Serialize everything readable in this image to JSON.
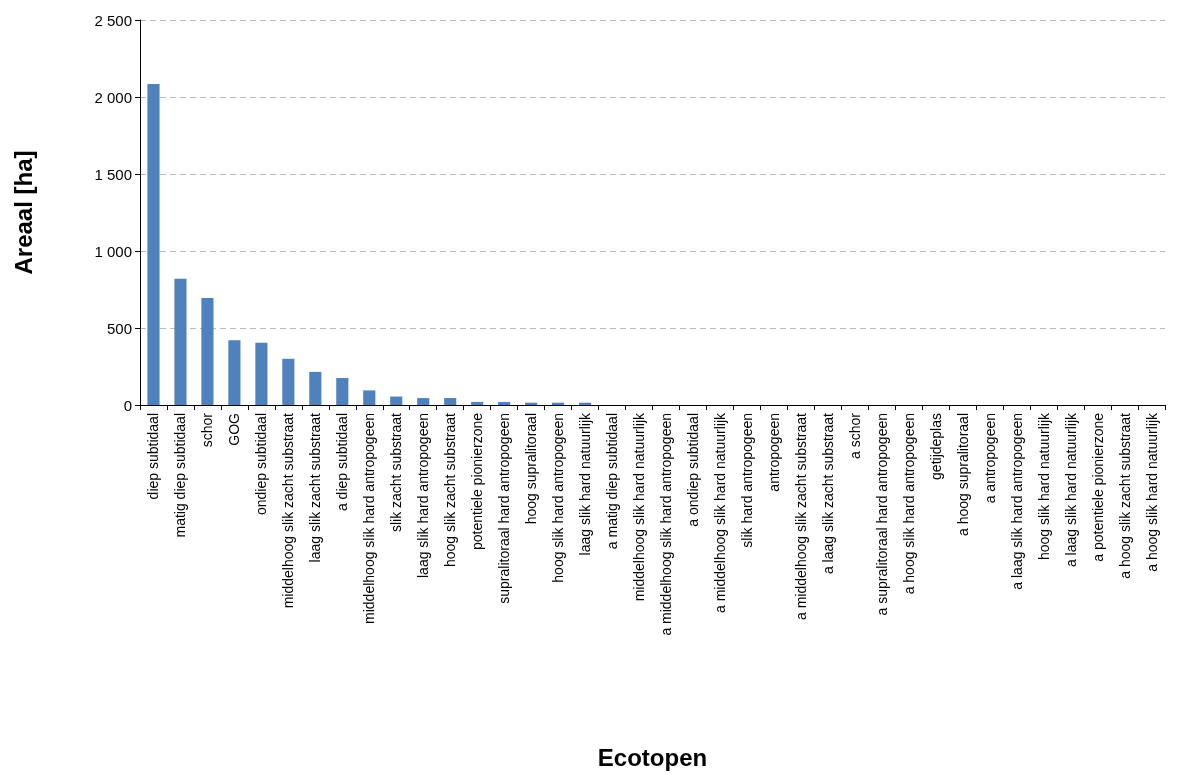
{
  "chart_data": {
    "type": "bar",
    "xlabel": "Ecotopen",
    "ylabel": "Areaal [ha]",
    "categories": [
      "diep subtidaal",
      "matig diep subtidaal",
      "schor",
      "GOG",
      "ondiep subtidaal",
      "middelhoog slik zacht substraat",
      "laag slik zacht substraat",
      "a diep subtidaal",
      "middelhoog slik hard antropogeen",
      "slik zacht substraat",
      "laag slik hard antropogeen",
      "hoog slik zacht substraat",
      "potentiele pionierzone",
      "supralitoraal hard antropogeen",
      "hoog supralitoraal",
      "hoog slik hard antropogeen",
      "laag slik hard natuurlijk",
      "a matig diep subtidaal",
      "middelhoog slik hard natuurlijk",
      "a middelhoog slik hard antropogeen",
      "a ondiep subtidaal",
      "a middelhoog slik hard natuurlijk",
      "slik hard antropogeen",
      "antropogeen",
      "a middelhoog slik zacht substraat",
      "a laag slik zacht substraat",
      "a schor",
      "a supralitoraal hard antropogeen",
      "a hoog slik hard antropogeen",
      "getijdeplas",
      "a hoog supralitoraal",
      "a antropogeen",
      "a laag slik hard antropogeen",
      "hoog slik hard natuurlijk",
      "a laag slik hard natuurlijk",
      "a potentiele pionierzone",
      "a hoog slik zacht substraat",
      "a hoog slik hard natuurlijk"
    ],
    "values": [
      2085,
      820,
      695,
      420,
      405,
      300,
      215,
      175,
      95,
      55,
      45,
      45,
      20,
      20,
      15,
      15,
      15,
      0,
      0,
      0,
      0,
      0,
      0,
      0,
      0,
      0,
      0,
      0,
      0,
      0,
      0,
      0,
      0,
      0,
      0,
      0,
      0,
      0
    ],
    "color": "#4f81bd",
    "ylim": [
      0,
      2500
    ],
    "yticks": [
      0,
      {
        "value": 500,
        "label": "500"
      },
      {
        "value": 1000,
        "label": "1 000"
      },
      {
        "value": 1500,
        "label": "1 500"
      },
      {
        "value": 2000,
        "label": "2 000"
      },
      {
        "value": 2500,
        "label": "2 500"
      }
    ],
    "grid": "y"
  }
}
